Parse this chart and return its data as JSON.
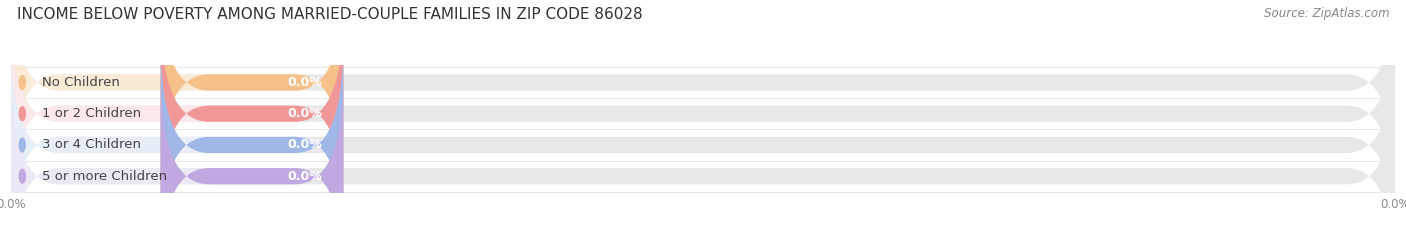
{
  "title": "INCOME BELOW POVERTY AMONG MARRIED-COUPLE FAMILIES IN ZIP CODE 86028",
  "source": "Source: ZipAtlas.com",
  "categories": [
    "No Children",
    "1 or 2 Children",
    "3 or 4 Children",
    "5 or more Children"
  ],
  "values": [
    0.0,
    0.0,
    0.0,
    0.0
  ],
  "bar_colors": [
    "#f5c08a",
    "#f09898",
    "#a0b8e8",
    "#c0a8e0"
  ],
  "label_bg_colors": [
    "#faebd7",
    "#fce8e8",
    "#e8eef8",
    "#ece8f5"
  ],
  "background_color": "#ffffff",
  "plot_bg_color": "#ffffff",
  "bar_track_color": "#e8e8e8",
  "title_fontsize": 11,
  "label_fontsize": 9.5,
  "tick_fontsize": 8.5,
  "source_fontsize": 8.5,
  "value_label": "0.0%",
  "x_tick_labels": [
    "0.0%",
    "0.0%"
  ]
}
